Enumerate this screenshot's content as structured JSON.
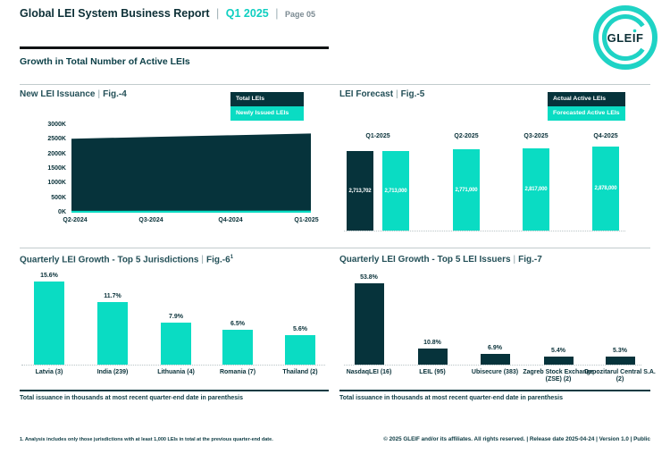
{
  "header": {
    "title": "Global LEI System Business Report",
    "quarter": "Q1 2025",
    "page": "Page 05"
  },
  "misc": {
    "pipe": "|"
  },
  "logo": {
    "text": "GLEIF"
  },
  "section": {
    "title": "Growth in Total Number of Active LEIs"
  },
  "colors": {
    "dark": "#06333b",
    "teal": "#0adcc3",
    "accent_text": "#10cfc1"
  },
  "panels": {
    "issuance": {
      "title": "New LEI Issuance",
      "fig": "Fig.-4"
    },
    "forecast": {
      "title": "LEI Forecast",
      "fig": "Fig.-5"
    },
    "jurisdictions": {
      "title": "Quarterly LEI Growth - Top 5 Jurisdictions",
      "fig": "Fig.-6",
      "fig_sup": "1",
      "note": "Total issuance in thousands at most recent quarter-end date in parenthesis"
    },
    "issuers": {
      "title": "Quarterly LEI Growth - Top 5 LEI Issuers",
      "fig": "Fig.-7",
      "note": "Total issuance in thousands at most recent quarter-end date in parenthesis"
    }
  },
  "chart_data": [
    {
      "type": "area",
      "title": "New LEI Issuance",
      "fig": "Fig.-4",
      "x": [
        "Q2-2024",
        "Q3-2024",
        "Q4-2024",
        "Q1-2025"
      ],
      "y_ticks": [
        "0K",
        "500K",
        "1000K",
        "1500K",
        "2000K",
        "2500K",
        "3000K"
      ],
      "ylim": [
        0,
        3000000
      ],
      "legend_position": "top-right",
      "series": [
        {
          "name": "Total LEIs",
          "color_key": "dark",
          "values": [
            2534000,
            2594000,
            2653000,
            2713702
          ]
        },
        {
          "name": "Newly Issued LEIs",
          "color_key": "teal",
          "values": [
            64000,
            67000,
            69000,
            71000
          ]
        }
      ]
    },
    {
      "type": "bar",
      "title": "LEI Forecast",
      "fig": "Fig.-5",
      "categories": [
        "Q1-2025",
        "Q2-2025",
        "Q3-2025",
        "Q4-2025"
      ],
      "ylim": [
        0,
        3000000
      ],
      "legend_position": "top-right",
      "series": [
        {
          "name": "Actual Active LEIs",
          "color_key": "dark",
          "values": [
            2713702,
            null,
            null,
            null
          ],
          "labels": [
            "2,713,702",
            null,
            null,
            null
          ]
        },
        {
          "name": "Forecasted Active LEIs",
          "color_key": "teal",
          "values": [
            2713000,
            2771000,
            2817000,
            2878000
          ],
          "labels": [
            "2,713,000",
            "2,771,000",
            "2,817,000",
            "2,878,000"
          ]
        }
      ]
    },
    {
      "type": "bar",
      "title": "Quarterly LEI Growth - Top 5 Jurisdictions",
      "fig": "Fig.-6",
      "fig_sup": "1",
      "categories": [
        "Latvia (3)",
        "India (239)",
        "Lithuania (4)",
        "Romania (7)",
        "Thailand (2)"
      ],
      "values": [
        15.6,
        11.7,
        7.9,
        6.5,
        5.6
      ],
      "labels": [
        "15.6%",
        "11.7%",
        "7.9%",
        "6.5%",
        "5.6%"
      ],
      "unit": "%",
      "color_key": "teal",
      "ylim": [
        0,
        16
      ]
    },
    {
      "type": "bar",
      "title": "Quarterly LEI Growth - Top 5 LEI Issuers",
      "fig": "Fig.-7",
      "categories": [
        "NasdaqLEI (16)",
        "LEIL (95)",
        "Ubisecure (383)",
        "Zagreb Stock Exchange (ZSE) (2)",
        "Depozitarul Central S.A. (2)"
      ],
      "values": [
        53.8,
        10.8,
        6.9,
        5.4,
        5.3
      ],
      "labels": [
        "53.8%",
        "10.8%",
        "6.9%",
        "5.4%",
        "5.3%"
      ],
      "unit": "%",
      "color_key": "dark",
      "ylim": [
        0,
        55
      ]
    }
  ],
  "footnote": "1. Analysis includes only those jurisdictions with at least 1,000 LEIs in total at the previous quarter-end date.",
  "footer": "© 2025 GLEIF and/or its affiliates. All rights reserved. | Release date 2025-04-24 | Version 1.0 | Public"
}
